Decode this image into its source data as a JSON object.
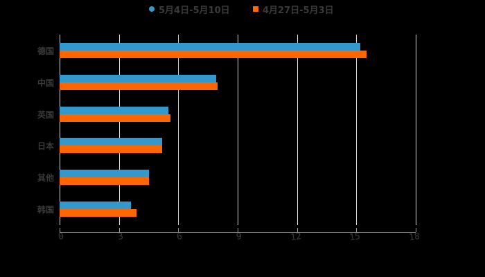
{
  "chart_data": {
    "type": "bar",
    "orientation": "horizontal",
    "title": "",
    "xlabel": "",
    "ylabel": "",
    "categories": [
      "德国",
      "中国",
      "英国",
      "日本",
      "其他",
      "韩国"
    ],
    "series": [
      {
        "name": "5月4日-5月10日",
        "color": "#3399cc",
        "marker": "circle",
        "values": [
          15.2,
          7.9,
          5.5,
          5.2,
          4.5,
          3.6
        ]
      },
      {
        "name": "4月27日-5月3日",
        "color": "#ff6600",
        "marker": "square",
        "values": [
          15.5,
          8.0,
          5.6,
          5.2,
          4.5,
          3.9
        ]
      }
    ],
    "xlim": [
      0,
      18
    ],
    "xticks": [
      "0",
      "3",
      "6",
      "9",
      "12",
      "15",
      "18"
    ],
    "grid": "vertical",
    "legend_position": "top"
  },
  "legend": [
    {
      "label": "5月4日-5月10日"
    },
    {
      "label": "4月27日-5月3日"
    }
  ]
}
